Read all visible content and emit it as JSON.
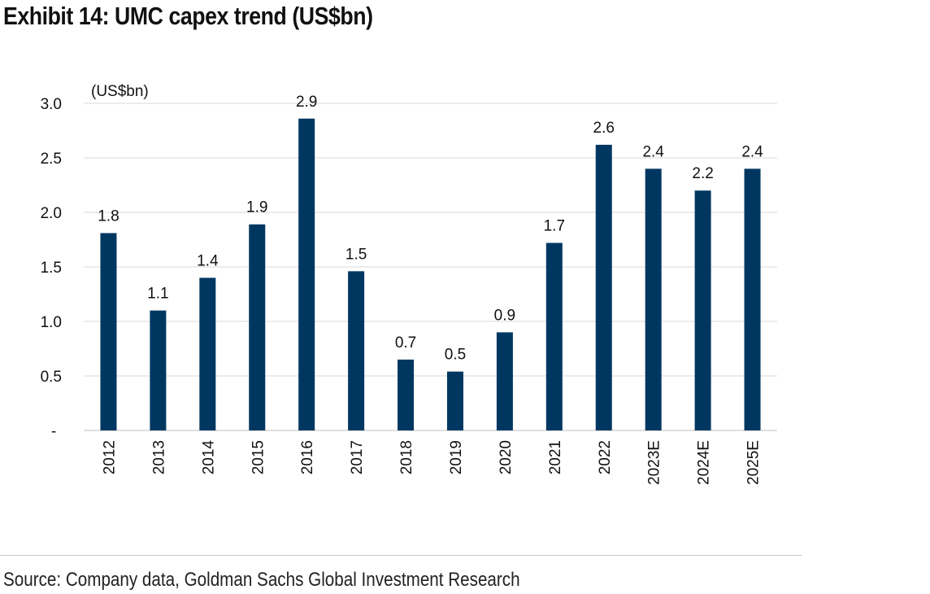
{
  "title": "Exhibit 14: UMC capex trend (US$bn)",
  "source": "Source: Company data, Goldman Sachs Global Investment Research",
  "colors": {
    "bar": "#003761",
    "grid": "#d9d9d9",
    "axis": "#bfbfbf"
  },
  "chart_data": {
    "type": "bar",
    "unit_label": "(US$bn)",
    "categories": [
      "2012",
      "2013",
      "2014",
      "2015",
      "2016",
      "2017",
      "2018",
      "2019",
      "2020",
      "2021",
      "2022",
      "2023E",
      "2024E",
      "2025E"
    ],
    "values": [
      1.81,
      1.1,
      1.4,
      1.89,
      2.86,
      1.46,
      0.65,
      0.54,
      0.9,
      1.72,
      2.62,
      2.4,
      2.2,
      2.4
    ],
    "data_labels": [
      "1.8",
      "1.1",
      "1.4",
      "1.9",
      "2.9",
      "1.5",
      "0.7",
      "0.5",
      "0.9",
      "1.7",
      "2.6",
      "2.4",
      "2.2",
      "2.4"
    ],
    "ylim": [
      0,
      3.0
    ],
    "yticks": [
      0,
      0.5,
      1.0,
      1.5,
      2.0,
      2.5,
      3.0
    ],
    "ytick_labels": [
      "-",
      "0.5",
      "1.0",
      "1.5",
      "2.0",
      "2.5",
      "3.0"
    ],
    "grid": true,
    "legend": "none"
  }
}
